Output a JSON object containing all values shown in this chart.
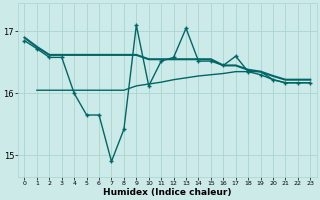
{
  "xlabel": "Humidex (Indice chaleur)",
  "bg_color": "#cceae8",
  "grid_color": "#aad4d2",
  "line_color": "#006666",
  "ylim": [
    14.65,
    17.45
  ],
  "xlim": [
    -0.5,
    23.5
  ],
  "yticks": [
    15,
    16,
    17
  ],
  "xticks": [
    0,
    1,
    2,
    3,
    4,
    5,
    6,
    7,
    8,
    9,
    10,
    11,
    12,
    13,
    14,
    15,
    16,
    17,
    18,
    19,
    20,
    21,
    22,
    23
  ],
  "line1_x": [
    0,
    1,
    2,
    3,
    4,
    5,
    6,
    7,
    8,
    9,
    10,
    11,
    12,
    13,
    14,
    15,
    16,
    17,
    18,
    19,
    20,
    21,
    22,
    23
  ],
  "line1_y": [
    16.9,
    16.75,
    16.62,
    16.62,
    16.62,
    16.62,
    16.62,
    16.62,
    16.62,
    16.62,
    16.55,
    16.55,
    16.55,
    16.55,
    16.55,
    16.55,
    16.45,
    16.45,
    16.38,
    16.35,
    16.28,
    16.22,
    16.22,
    16.22
  ],
  "line2_x": [
    0,
    1,
    2,
    3,
    4,
    5,
    6,
    7,
    8,
    9,
    10,
    11,
    12,
    13,
    14,
    15,
    16,
    17,
    18,
    19,
    20,
    21,
    22,
    23
  ],
  "line2_y": [
    16.85,
    16.72,
    16.58,
    16.58,
    16.0,
    15.65,
    15.65,
    14.9,
    15.42,
    17.1,
    16.12,
    16.52,
    16.58,
    17.05,
    16.52,
    16.52,
    16.45,
    16.6,
    16.35,
    16.3,
    16.22,
    16.17,
    16.17,
    16.17
  ],
  "line3_x": [
    1,
    2,
    3,
    4,
    5,
    6,
    7,
    8,
    9,
    10,
    11,
    12,
    13,
    14,
    15,
    16,
    17,
    18,
    19,
    20,
    21,
    22,
    23
  ],
  "line3_y": [
    16.05,
    16.05,
    16.05,
    16.05,
    16.05,
    16.05,
    16.05,
    16.05,
    16.12,
    16.15,
    16.18,
    16.22,
    16.25,
    16.28,
    16.3,
    16.32,
    16.35,
    16.35,
    16.35,
    16.22,
    16.17,
    16.17,
    16.17
  ]
}
